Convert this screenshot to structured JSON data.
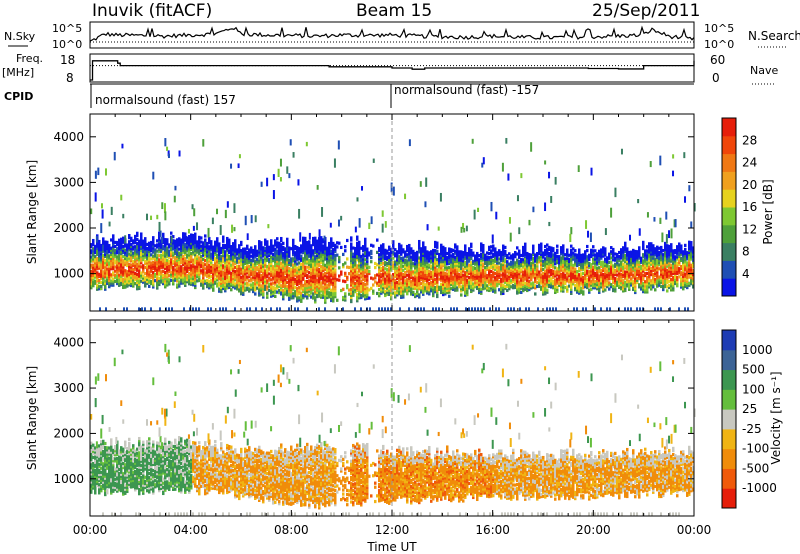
{
  "header": {
    "station": "Inuvik (fitACF)",
    "beam": "Beam 15",
    "date": "25/Sep/2011"
  },
  "top_panels": {
    "nsky_label": "N.Sky",
    "nsearch_label": "N.Search",
    "nsky_tick_top": "10^5",
    "nsky_tick_bottom": "10^0",
    "nsearch_tick_top": "10^5",
    "nsearch_tick_bottom": "10^0",
    "freq_label_1": "Freq.",
    "freq_label_2": "[MHz]",
    "freq_ticks": [
      "18",
      "8"
    ],
    "nave_label": "Nave",
    "nave_ticks": [
      "60",
      "0"
    ],
    "cpid_label": "CPID",
    "cpid_1": "normalsound (fast) 157",
    "cpid_2": "normalsound (fast) -157",
    "cpid_change_hour": 12.0
  },
  "power_colorbar": {
    "title": "Power [dB]",
    "ticks": [
      "4",
      "8",
      "12",
      "16",
      "20",
      "24",
      "28"
    ],
    "colors": [
      "#0a14e6",
      "#1f4fb4",
      "#3a7f62",
      "#4ea03a",
      "#7ec832",
      "#e6d21e",
      "#f0a01e",
      "#f07814",
      "#f0460a",
      "#e61e0a"
    ]
  },
  "velocity_colorbar": {
    "title": "Velocity [m s⁻¹]",
    "ticks": [
      "1000",
      "500",
      "100",
      "25",
      "-25",
      "-100",
      "-500",
      "-1000"
    ],
    "colors": [
      "#1e3cb4",
      "#3c6496",
      "#3c9650",
      "#64be3c",
      "#c8c8c0",
      "#f0b414",
      "#f08c0a",
      "#f05a0a",
      "#e61e0a"
    ]
  },
  "chart_data": [
    {
      "type": "line",
      "title": "N.Sky / N.Search",
      "x_unit": "UT hours",
      "xlim": [
        0,
        24
      ],
      "y_scale": "log",
      "ylim_label": [
        "10^0",
        "10^5"
      ],
      "series": [
        {
          "name": "N.Sky",
          "x": [
            0,
            0.6,
            1,
            2,
            3,
            4,
            5,
            5.7,
            6,
            7,
            8,
            9,
            10,
            11,
            12,
            13,
            14,
            15,
            16,
            17,
            18,
            19,
            20,
            21,
            22,
            22.3,
            23,
            24
          ],
          "y_frac": [
            0.2,
            0.55,
            0.5,
            0.48,
            0.45,
            0.5,
            0.55,
            0.85,
            0.55,
            0.5,
            0.48,
            0.45,
            0.5,
            0.48,
            0.5,
            0.45,
            0.42,
            0.4,
            0.45,
            0.4,
            0.38,
            0.4,
            0.42,
            0.45,
            0.5,
            0.75,
            0.45,
            0.3
          ]
        }
      ]
    },
    {
      "type": "line",
      "title": "Frequency / Nave",
      "x_unit": "UT hours",
      "xlim": [
        0,
        24
      ],
      "ylim": [
        8,
        18
      ],
      "series": [
        {
          "name": "Freq",
          "x": [
            0,
            0.1,
            1.1,
            1.2,
            9.5,
            12.0,
            12.8,
            13.3,
            16.5,
            19.3,
            19.8,
            21.0,
            22.0,
            24.0
          ],
          "y": [
            8,
            16,
            15,
            14,
            13.5,
            13,
            12.5,
            13,
            13,
            13,
            12.8,
            12.6,
            14,
            16
          ]
        },
        {
          "name": "Nave",
          "x": [
            0,
            24
          ],
          "y_frac": [
            0.6,
            0.6
          ]
        }
      ]
    },
    {
      "type": "heatmap",
      "title": "Power",
      "xlabel": "Time UT",
      "ylabel": "Slant Range [km]",
      "xlim": [
        0,
        24
      ],
      "ylim": [
        180,
        4500
      ],
      "x_ticks": [
        "00:00",
        "04:00",
        "08:00",
        "12:00",
        "16:00",
        "20:00",
        "00:00"
      ],
      "y_ticks": [
        1000,
        2000,
        3000,
        4000
      ],
      "zlabel": "Power [dB]",
      "zlim": [
        0,
        32
      ],
      "band_lower_km": [
        [
          0,
          700
        ],
        [
          4,
          750
        ],
        [
          6,
          600
        ],
        [
          9,
          400
        ],
        [
          12,
          500
        ],
        [
          16,
          600
        ],
        [
          20,
          600
        ],
        [
          24,
          700
        ]
      ],
      "band_upper_km": [
        [
          0,
          1700
        ],
        [
          4,
          1800
        ],
        [
          6,
          1600
        ],
        [
          9,
          1700
        ],
        [
          12,
          1600
        ],
        [
          16,
          1500
        ],
        [
          20,
          1500
        ],
        [
          24,
          1600
        ]
      ],
      "scatter_extent_km": [
        180,
        3800
      ]
    },
    {
      "type": "heatmap",
      "title": "Velocity",
      "xlabel": "Time UT",
      "ylabel": "Slant Range [km]",
      "xlim": [
        0,
        24
      ],
      "ylim": [
        180,
        4500
      ],
      "x_ticks": [
        "00:00",
        "04:00",
        "08:00",
        "12:00",
        "16:00",
        "20:00",
        "00:00"
      ],
      "y_ticks": [
        1000,
        2000,
        3000,
        4000
      ],
      "zlabel": "Velocity [m s^-1]",
      "zlim": [
        -1000,
        1000
      ]
    }
  ],
  "xlabel": "Time UT"
}
